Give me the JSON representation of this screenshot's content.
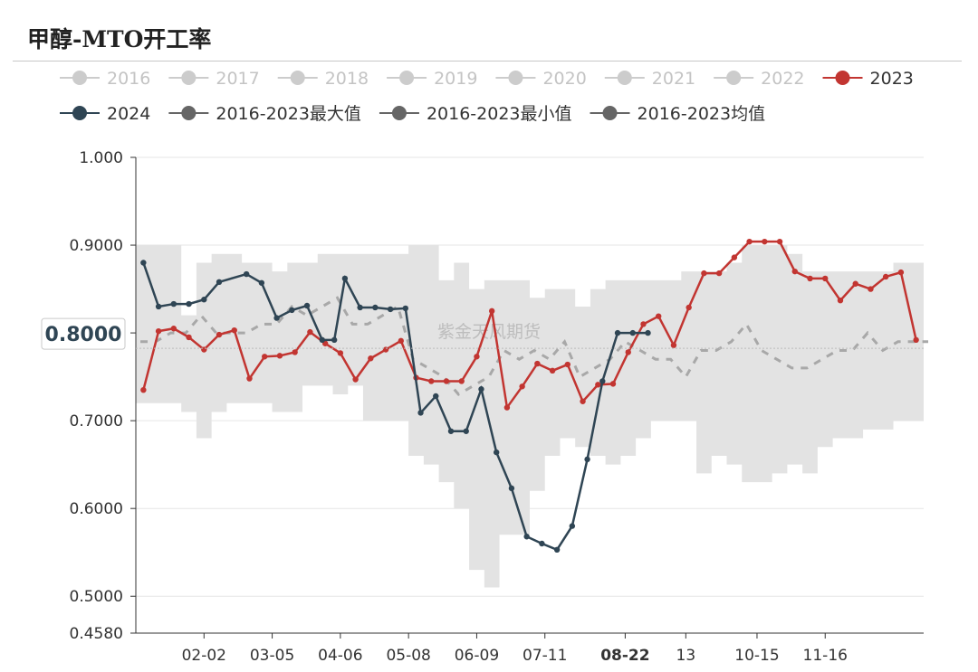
{
  "title": "甲醇-MTO开工率",
  "watermark": "紫金天风期货",
  "colors": {
    "inactive": "#cccccc",
    "y2023": "#c23531",
    "y2024": "#2f4554",
    "stat": "#666666",
    "band": "#e3e3e3",
    "mean": "#a8a8a8"
  },
  "legend": [
    {
      "label": "2016",
      "active": false,
      "color": "#cccccc"
    },
    {
      "label": "2017",
      "active": false,
      "color": "#cccccc"
    },
    {
      "label": "2018",
      "active": false,
      "color": "#cccccc"
    },
    {
      "label": "2019",
      "active": false,
      "color": "#cccccc"
    },
    {
      "label": "2020",
      "active": false,
      "color": "#cccccc"
    },
    {
      "label": "2021",
      "active": false,
      "color": "#cccccc"
    },
    {
      "label": "2022",
      "active": false,
      "color": "#cccccc"
    },
    {
      "label": "2023",
      "active": true,
      "color": "#c23531"
    },
    {
      "label": "2024",
      "active": true,
      "color": "#2f4554"
    },
    {
      "label": "2016-2023最大值",
      "active": true,
      "color": "#666666"
    },
    {
      "label": "2016-2023最小值",
      "active": true,
      "color": "#666666"
    },
    {
      "label": "2016-2023均值",
      "active": true,
      "color": "#666666"
    }
  ],
  "chart_data": {
    "type": "line",
    "y_axis": {
      "min": 0.458,
      "max": 1.0,
      "ticks": [
        {
          "value": 0.458,
          "label": "0.4580"
        },
        {
          "value": 0.5,
          "label": "0.5000"
        },
        {
          "value": 0.6,
          "label": "0.6000"
        },
        {
          "value": 0.7,
          "label": "0.7000"
        },
        {
          "value": 0.8,
          "label": "0.8000"
        },
        {
          "value": 0.9,
          "label": "0.9000"
        },
        {
          "value": 1.0,
          "label": "1.000"
        }
      ],
      "pointer_label": "0.8000",
      "pointer_value": 0.8
    },
    "x_axis": {
      "min": 0,
      "max": 52,
      "ticks": [
        {
          "index": 4.5,
          "label": "02-02"
        },
        {
          "index": 9,
          "label": "03-05"
        },
        {
          "index": 13.5,
          "label": "04-06"
        },
        {
          "index": 18,
          "label": "05-08"
        },
        {
          "index": 22.5,
          "label": "06-09"
        },
        {
          "index": 27,
          "label": "07-11"
        },
        {
          "index": 32.3,
          "label": "08-22",
          "highlight": true
        },
        {
          "index": 36.3,
          "label": "13"
        },
        {
          "index": 41,
          "label": "10-15"
        },
        {
          "index": 45.5,
          "label": "11-16"
        }
      ]
    },
    "series": [
      {
        "name": "2023",
        "color": "#c23531",
        "x": [
          0.5,
          1.5,
          2.5,
          3.5,
          4.5,
          5.5,
          6.5,
          7.5,
          8.5,
          9.5,
          10.5,
          11.5,
          12.5,
          13.5,
          14.5,
          15.5,
          16.5,
          17.5,
          18.5,
          19.5,
          20.5,
          21.5,
          22.5,
          23.5,
          24.5,
          25.5,
          26.5,
          27.5,
          28.5,
          29.5,
          30.5,
          31.5,
          32.5,
          33.5,
          34.5,
          35.5,
          36.5,
          37.5,
          38.5,
          39.5,
          40.5,
          41.5,
          42.5,
          43.5,
          44.5,
          45.5,
          46.5,
          47.5,
          48.5,
          49.5,
          50.5,
          51.5
        ],
        "values": [
          0.735,
          0.802,
          0.805,
          0.795,
          0.781,
          0.798,
          0.803,
          0.748,
          0.773,
          0.774,
          0.778,
          0.801,
          0.788,
          0.777,
          0.747,
          0.771,
          0.781,
          0.791,
          0.749,
          0.745,
          0.745,
          0.745,
          0.773,
          0.825,
          0.715,
          0.739,
          0.765,
          0.757,
          0.764,
          0.722,
          0.741,
          0.742,
          0.778,
          0.81,
          0.819,
          0.786,
          0.829,
          0.868,
          0.868,
          0.886,
          0.904,
          0.904,
          0.904,
          0.87,
          0.862,
          0.862,
          0.837,
          0.856,
          0.85,
          0.864,
          0.869,
          0.792
        ]
      },
      {
        "name": "2024",
        "color": "#2f4554",
        "x": [
          0.5,
          1.5,
          2.5,
          3.5,
          4.5,
          5.5,
          7.3,
          8.3,
          9.3,
          10.3,
          11.3,
          12.3,
          13.1,
          13.8,
          14.8,
          15.8,
          16.8,
          17.8,
          18.8,
          19.8,
          20.8,
          21.8,
          22.8,
          23.8,
          24.8,
          25.8,
          26.8,
          27.8,
          28.8,
          29.8,
          30.8,
          31.8,
          32.8,
          33.8
        ],
        "values": [
          0.88,
          0.83,
          0.833,
          0.833,
          0.838,
          0.858,
          0.867,
          0.857,
          0.817,
          0.826,
          0.831,
          0.792,
          0.792,
          0.862,
          0.829,
          0.829,
          0.827,
          0.828,
          0.709,
          0.728,
          0.688,
          0.688,
          0.736,
          0.664,
          0.623,
          0.568,
          0.56,
          0.553,
          0.58,
          0.656,
          0.745,
          0.8,
          0.8,
          0.8
        ]
      }
    ]
  }
}
